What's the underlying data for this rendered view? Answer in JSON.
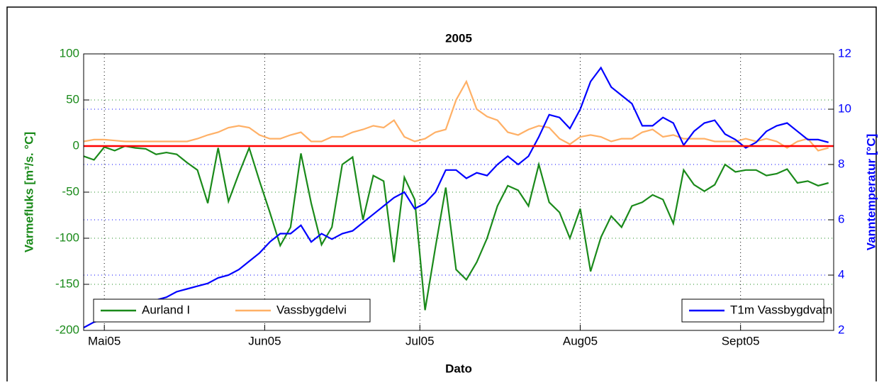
{
  "chart_data": {
    "type": "line",
    "title": "2005",
    "xlabel": "Dato",
    "ylabel": "Varmefluks [m³/s. °C]",
    "y2label": "Vanntemperatur [°C]",
    "xlim": [
      117,
      262
    ],
    "xticks": [
      {
        "value": 121,
        "label": "Mai05"
      },
      {
        "value": 152,
        "label": "Jun05"
      },
      {
        "value": 182,
        "label": "Jul05"
      },
      {
        "value": 213,
        "label": "Aug05"
      },
      {
        "value": 244,
        "label": "Sept05"
      }
    ],
    "ylim": [
      -200,
      100
    ],
    "yticks": [
      -200,
      -150,
      -100,
      -50,
      0,
      50,
      100
    ],
    "y2lim": [
      2,
      12
    ],
    "y2ticks": [
      2,
      4,
      6,
      8,
      10,
      12
    ],
    "grid": true,
    "ylabel_color": "#1a8a1a",
    "y2label_color": "#0000ff",
    "reference_line": {
      "value": 0,
      "color": "#ff0000"
    },
    "legend_locations": {
      "y": "lower left",
      "y2": "lower right"
    },
    "x": [
      117,
      119,
      121,
      123,
      125,
      127,
      129,
      131,
      133,
      135,
      137,
      139,
      141,
      143,
      145,
      147,
      149,
      151,
      153,
      155,
      157,
      159,
      161,
      163,
      165,
      167,
      169,
      171,
      173,
      175,
      177,
      179,
      181,
      183,
      185,
      187,
      189,
      191,
      193,
      195,
      197,
      199,
      201,
      203,
      205,
      207,
      209,
      211,
      213,
      215,
      217,
      219,
      221,
      223,
      225,
      227,
      229,
      231,
      233,
      235,
      237,
      239,
      241,
      243,
      245,
      247,
      249,
      251,
      253,
      255,
      257,
      259,
      261
    ],
    "series": [
      {
        "name": "Aurland I",
        "color": "#1a8a1a",
        "axis": "y",
        "values": [
          -11,
          -15,
          -1,
          -5,
          0,
          -2,
          -3,
          -9,
          -7,
          -9,
          -18,
          -26,
          -62,
          -2,
          -60,
          -30,
          -2,
          -38,
          -72,
          -108,
          -88,
          -8,
          -62,
          -107,
          -88,
          -20,
          -12,
          -80,
          -32,
          -38,
          -126,
          -34,
          -58,
          -178,
          -110,
          -45,
          -134,
          -145,
          -126,
          -100,
          -65,
          -43,
          -48,
          -65,
          -20,
          -61,
          -72,
          -100,
          -68,
          -136,
          -99,
          -76,
          -88,
          -65,
          -61,
          -53,
          -58,
          -84,
          -26,
          -42,
          -49,
          -42,
          -20,
          -28,
          -26,
          -26,
          -32,
          -30,
          -25,
          -40,
          -38,
          -43,
          -40
        ]
      },
      {
        "name": "Vassbygdelvi",
        "color": "#ffb066",
        "axis": "y",
        "values": [
          5,
          7,
          7,
          6,
          5,
          5,
          5,
          5,
          5,
          5,
          5,
          8,
          12,
          15,
          20,
          22,
          20,
          12,
          8,
          8,
          12,
          15,
          5,
          5,
          10,
          10,
          15,
          18,
          22,
          20,
          28,
          10,
          5,
          8,
          15,
          18,
          50,
          70,
          40,
          32,
          28,
          15,
          12,
          18,
          22,
          20,
          8,
          2,
          10,
          12,
          10,
          5,
          8,
          8,
          15,
          18,
          10,
          12,
          8,
          8,
          8,
          5,
          5,
          5,
          8,
          5,
          8,
          5,
          -2,
          5,
          8,
          -5,
          -2
        ]
      },
      {
        "name": "T1m Vassbygdvatn",
        "color": "#0000ff",
        "axis": "y2",
        "values": [
          2.1,
          2.3,
          2.4,
          2.5,
          2.6,
          2.8,
          2.9,
          3.1,
          3.2,
          3.4,
          3.5,
          3.6,
          3.7,
          3.9,
          4.0,
          4.2,
          4.5,
          4.8,
          5.2,
          5.5,
          5.5,
          5.8,
          5.2,
          5.5,
          5.3,
          5.5,
          5.6,
          5.9,
          6.2,
          6.5,
          6.8,
          7.0,
          6.4,
          6.6,
          7.0,
          7.8,
          7.8,
          7.5,
          7.7,
          7.6,
          8.0,
          8.3,
          8.0,
          8.3,
          9.0,
          9.8,
          9.7,
          9.3,
          10.0,
          11.0,
          11.5,
          10.8,
          10.5,
          10.2,
          9.4,
          9.4,
          9.7,
          9.5,
          8.7,
          9.2,
          9.5,
          9.6,
          9.1,
          8.9,
          8.6,
          8.8,
          9.2,
          9.4,
          9.5,
          9.2,
          8.9,
          8.9,
          8.8
        ]
      }
    ]
  }
}
